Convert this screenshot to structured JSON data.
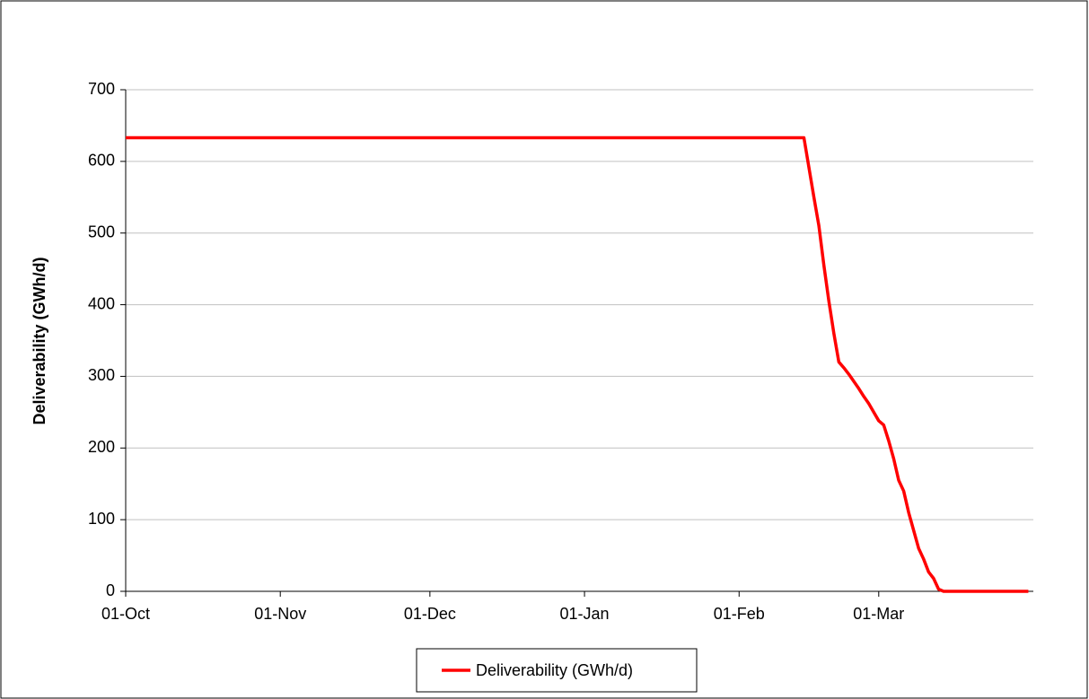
{
  "chart_data": {
    "type": "line",
    "ylabel": "Deliverability (GWh/d)",
    "x": [
      0,
      136,
      138,
      139,
      140,
      141,
      142,
      143,
      144,
      145,
      146,
      147,
      148,
      149,
      150,
      151,
      152,
      153,
      154,
      155,
      156,
      157,
      158,
      159,
      160,
      161,
      162,
      163,
      164,
      181
    ],
    "series": [
      {
        "name": "Deliverability (GWh/d)",
        "color": "#ff0000",
        "values": [
          633,
          633,
          550,
          510,
          455,
          405,
          360,
          320,
          312,
          303,
          293,
          283,
          272,
          262,
          250,
          238,
          232,
          210,
          185,
          155,
          140,
          110,
          85,
          60,
          45,
          27,
          18,
          3,
          0,
          0
        ]
      }
    ],
    "xlim": [
      0,
      182
    ],
    "xticks": [
      {
        "value": 0,
        "label": "01-Oct"
      },
      {
        "value": 31,
        "label": "01-Nov"
      },
      {
        "value": 61,
        "label": "01-Dec"
      },
      {
        "value": 92,
        "label": "01-Jan"
      },
      {
        "value": 123,
        "label": "01-Feb"
      },
      {
        "value": 151,
        "label": "01-Mar"
      }
    ],
    "ylim": [
      0,
      700
    ],
    "yticks": [
      0,
      100,
      200,
      300,
      400,
      500,
      600,
      700
    ],
    "grid": true,
    "legend": "bottom"
  }
}
